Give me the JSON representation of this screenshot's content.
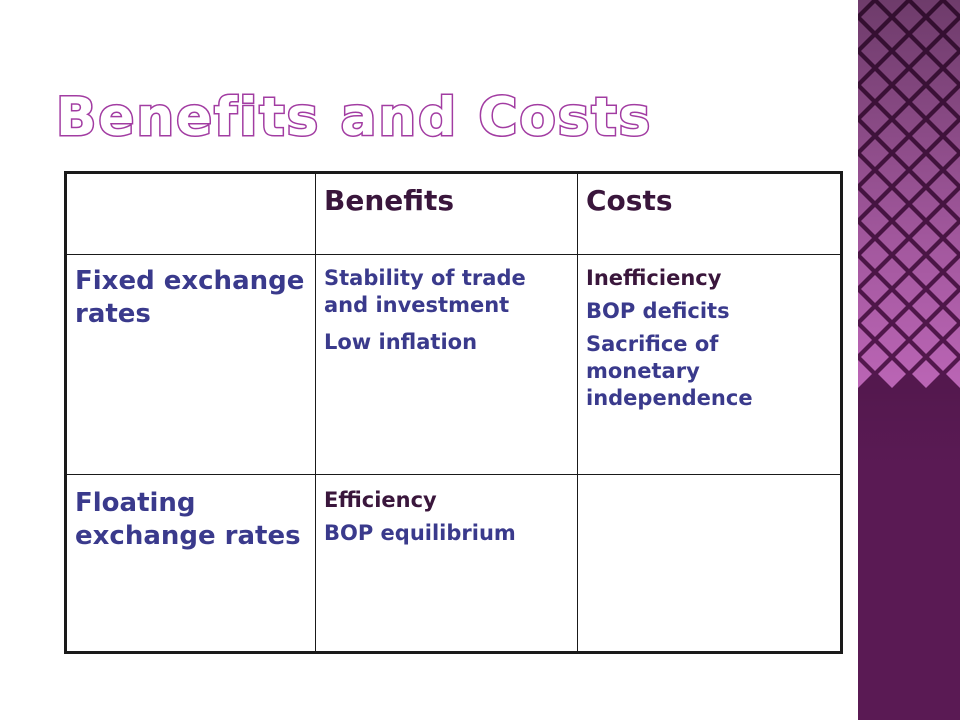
{
  "slide": {
    "title": "Benefits and Costs"
  },
  "table": {
    "columns": [
      "",
      "Benefits",
      "Costs"
    ],
    "rows": [
      {
        "label": "Fixed exchange rates",
        "benefits": [
          "Stability of trade and investment",
          "Low inflation"
        ],
        "costs": [
          "Inefficiency",
          "BOP deficits",
          "Sacrifice of monetary independence"
        ]
      },
      {
        "label": "Floating exchange rates",
        "benefits": [
          "Efficiency",
          "BOP equilibrium"
        ],
        "costs": []
      }
    ]
  },
  "theme": {
    "title_outline_color": "#a23ca2",
    "band_dark_color": "#5a1a54",
    "band_light_color": "#c86cc2",
    "text_blue": "#3a3a8c",
    "text_dark": "#3a163c"
  }
}
